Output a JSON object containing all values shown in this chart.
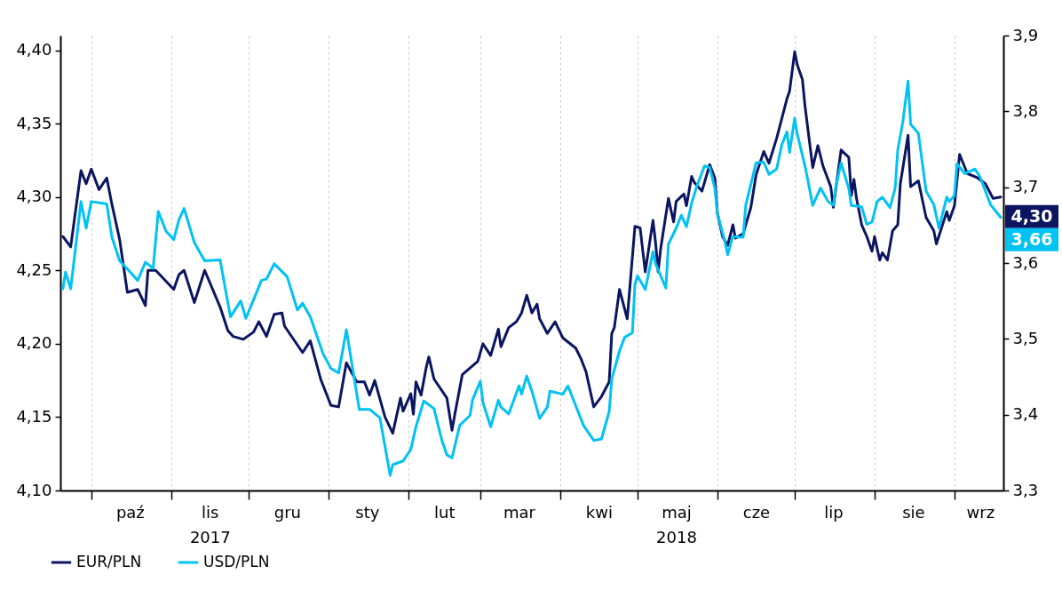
{
  "chart_data": {
    "type": "line",
    "xlim": [
      "2017-09-19",
      "2018-09-20"
    ],
    "xticks": [
      {
        "value": "2017-10-01",
        "label": null
      },
      {
        "value": "2017-11-01",
        "label": null
      },
      {
        "value": "2017-12-01",
        "label": null
      },
      {
        "value": "2018-01-01",
        "label": null
      },
      {
        "value": "2018-02-01",
        "label": null
      },
      {
        "value": "2018-03-01",
        "label": null
      },
      {
        "value": "2018-04-01",
        "label": null
      },
      {
        "value": "2018-05-01",
        "label": null
      },
      {
        "value": "2018-06-01",
        "label": null
      },
      {
        "value": "2018-07-01",
        "label": null
      },
      {
        "value": "2018-08-01",
        "label": null
      },
      {
        "value": "2018-09-01",
        "label": null
      },
      {
        "value": "2017-10-16",
        "label": "paź"
      },
      {
        "value": "2017-11-16",
        "label": "lis\n2017"
      },
      {
        "value": "2017-12-16",
        "label": "gru"
      },
      {
        "value": "2018-01-16",
        "label": "sty"
      },
      {
        "value": "2018-02-15",
        "label": "lut"
      },
      {
        "value": "2018-03-16",
        "label": "mar"
      },
      {
        "value": "2018-04-16",
        "label": "kwi"
      },
      {
        "value": "2018-05-16",
        "label": "maj\n2018"
      },
      {
        "value": "2018-06-16",
        "label": "cze"
      },
      {
        "value": "2018-07-16",
        "label": "lip"
      },
      {
        "value": "2018-08-16",
        "label": "sie"
      },
      {
        "value": "2018-09-11",
        "label": "wrz"
      }
    ],
    "ylim": [
      4.1,
      4.41
    ],
    "yticks": [
      {
        "value": 4.1,
        "label": "4,10"
      },
      {
        "value": 4.15,
        "label": "4,15"
      },
      {
        "value": 4.2,
        "label": "4,20"
      },
      {
        "value": 4.25,
        "label": "4,25"
      },
      {
        "value": 4.3,
        "label": "4,30"
      },
      {
        "value": 4.35,
        "label": "4,35"
      },
      {
        "value": 4.4,
        "label": "4,40"
      }
    ],
    "y2lim": [
      3.3,
      3.9
    ],
    "y2ticks": [
      {
        "value": 3.3,
        "label": "3,3"
      },
      {
        "value": 3.4,
        "label": "3,4"
      },
      {
        "value": 3.5,
        "label": "3,5"
      },
      {
        "value": 3.6,
        "label": "3,6"
      },
      {
        "value": 3.7,
        "label": "3,7"
      },
      {
        "value": 3.8,
        "label": "3,8"
      },
      {
        "value": 3.9,
        "label": "3,9"
      }
    ],
    "grid": "x",
    "legend": "bottom left",
    "series": [
      {
        "name": "EUR/PLN",
        "color": "#0b1560",
        "x": [
          "2017-09-20",
          "2017-09-23",
          "2017-09-27",
          "2017-09-29",
          "2017-10-01",
          "2017-10-04",
          "2017-10-07",
          "2017-10-09",
          "2017-10-12",
          "2017-10-15",
          "2017-10-19",
          "2017-10-22",
          "2017-10-23",
          "2017-10-26",
          "2017-11-02",
          "2017-11-04",
          "2017-11-06",
          "2017-11-10",
          "2017-11-14",
          "2017-11-20",
          "2017-11-23",
          "2017-11-25",
          "2017-11-29",
          "2017-12-03",
          "2017-12-05",
          "2017-12-08",
          "2017-12-11",
          "2017-12-14",
          "2017-12-15",
          "2017-12-22",
          "2017-12-25",
          "2017-12-29",
          "2018-01-02",
          "2018-01-05",
          "2018-01-08",
          "2018-01-12",
          "2018-01-15",
          "2018-01-17",
          "2018-01-19",
          "2018-01-23",
          "2018-01-26",
          "2018-01-29",
          "2018-01-30",
          "2018-02-02",
          "2018-02-03",
          "2018-02-04",
          "2018-02-06",
          "2018-02-08",
          "2018-02-09",
          "2018-02-11",
          "2018-02-16",
          "2018-02-18",
          "2018-02-19",
          "2018-02-22",
          "2018-02-28",
          "2018-03-02",
          "2018-03-05",
          "2018-03-08",
          "2018-03-09",
          "2018-03-12",
          "2018-03-15",
          "2018-03-17",
          "2018-03-19",
          "2018-03-21",
          "2018-03-23",
          "2018-03-24",
          "2018-03-27",
          "2018-03-30",
          "2018-04-02",
          "2018-04-07",
          "2018-04-09",
          "2018-04-11",
          "2018-04-14",
          "2018-04-17",
          "2018-04-20",
          "2018-04-21",
          "2018-04-22",
          "2018-04-24",
          "2018-04-27",
          "2018-04-30",
          "2018-05-02",
          "2018-05-04",
          "2018-05-07",
          "2018-05-08",
          "2018-05-09",
          "2018-05-10",
          "2018-05-13",
          "2018-05-15",
          "2018-05-16",
          "2018-05-19",
          "2018-05-20",
          "2018-05-22",
          "2018-05-23",
          "2018-05-26",
          "2018-05-29",
          "2018-05-31",
          "2018-06-01",
          "2018-06-03",
          "2018-06-05",
          "2018-06-07",
          "2018-06-08",
          "2018-06-11",
          "2018-06-14",
          "2018-06-16",
          "2018-06-19",
          "2018-06-21",
          "2018-06-24",
          "2018-06-28",
          "2018-06-29",
          "2018-07-01",
          "2018-07-02",
          "2018-07-04",
          "2018-07-05",
          "2018-07-08",
          "2018-07-10",
          "2018-07-12",
          "2018-07-15",
          "2018-07-16",
          "2018-07-19",
          "2018-07-22",
          "2018-07-23",
          "2018-07-24",
          "2018-07-25",
          "2018-07-27",
          "2018-07-29",
          "2018-07-31",
          "2018-08-01",
          "2018-08-03",
          "2018-08-04",
          "2018-08-06",
          "2018-08-08",
          "2018-08-10",
          "2018-08-11",
          "2018-08-14",
          "2018-08-15",
          "2018-08-18",
          "2018-08-21",
          "2018-08-24",
          "2018-08-25",
          "2018-08-29",
          "2018-08-30",
          "2018-09-01",
          "2018-09-03",
          "2018-09-06",
          "2018-09-10",
          "2018-09-13",
          "2018-09-16",
          "2018-09-19"
        ],
        "values": [
          4.273,
          4.266,
          4.318,
          4.309,
          4.319,
          4.305,
          4.313,
          4.295,
          4.271,
          4.235,
          4.237,
          4.226,
          4.25,
          4.25,
          4.237,
          4.247,
          4.25,
          4.228,
          4.25,
          4.225,
          4.209,
          4.205,
          4.203,
          4.208,
          4.215,
          4.205,
          4.22,
          4.221,
          4.212,
          4.194,
          4.202,
          4.176,
          4.158,
          4.157,
          4.187,
          4.174,
          4.174,
          4.165,
          4.175,
          4.15,
          4.139,
          4.163,
          4.154,
          4.166,
          4.152,
          4.174,
          4.165,
          4.184,
          4.191,
          4.176,
          4.163,
          4.141,
          4.151,
          4.179,
          4.188,
          4.2,
          4.192,
          4.21,
          4.198,
          4.211,
          4.215,
          4.221,
          4.233,
          4.221,
          4.227,
          4.217,
          4.207,
          4.215,
          4.204,
          4.197,
          4.19,
          4.181,
          4.157,
          4.164,
          4.174,
          4.207,
          4.211,
          4.237,
          4.217,
          4.28,
          4.279,
          4.249,
          4.284,
          4.269,
          4.249,
          4.265,
          4.299,
          4.283,
          4.297,
          4.302,
          4.294,
          4.314,
          4.31,
          4.304,
          4.322,
          4.313,
          4.289,
          4.273,
          4.267,
          4.281,
          4.272,
          4.275,
          4.293,
          4.315,
          4.331,
          4.323,
          4.34,
          4.367,
          4.372,
          4.399,
          4.39,
          4.38,
          4.362,
          4.32,
          4.335,
          4.321,
          4.307,
          4.293,
          4.332,
          4.327,
          4.301,
          4.312,
          4.299,
          4.281,
          4.273,
          4.263,
          4.273,
          4.257,
          4.262,
          4.257,
          4.277,
          4.281,
          4.309,
          4.342,
          4.307,
          4.311,
          4.286,
          4.277,
          4.268,
          4.29,
          4.284,
          4.294,
          4.329,
          4.316,
          4.313,
          4.309,
          4.299,
          4.3
        ],
        "value_labels": [
          null,
          null,
          null,
          null,
          null,
          null,
          null,
          null,
          null,
          null,
          null,
          null,
          null,
          null,
          null,
          null,
          null,
          null,
          null,
          null,
          null,
          null,
          null,
          null,
          null,
          null,
          null,
          null,
          null,
          null,
          null,
          null,
          null,
          null,
          null,
          null,
          null,
          null,
          null,
          null,
          null,
          null,
          null,
          null,
          null,
          null,
          null,
          null,
          null,
          null,
          null,
          null,
          null,
          null,
          null,
          null,
          null,
          null,
          null,
          null,
          null,
          null,
          null,
          null,
          null,
          null,
          null,
          null,
          null,
          null,
          null,
          null,
          null,
          null,
          null,
          null,
          null,
          null,
          null,
          null,
          null,
          null,
          null,
          null,
          null,
          null,
          null,
          null,
          null,
          null,
          null,
          null,
          null,
          null,
          null,
          null,
          null,
          null,
          null,
          null,
          null,
          null,
          null,
          null,
          null,
          null,
          null,
          null,
          null,
          null,
          null,
          null,
          null,
          null,
          null,
          null,
          null,
          null,
          null,
          null,
          null,
          null,
          null,
          null,
          null,
          null,
          null,
          null,
          null,
          null,
          null,
          null,
          null,
          null,
          null,
          null,
          null,
          null,
          null,
          null,
          null,
          null,
          null,
          null,
          null,
          null,
          null,
          "4,30"
        ]
      },
      {
        "name": "USD/PLN",
        "color": "#00c2f3",
        "axis": "y2",
        "x": [
          "2017-09-20",
          "2017-09-21",
          "2017-09-23",
          "2017-09-27",
          "2017-09-29",
          "2017-10-01",
          "2017-10-07",
          "2017-10-09",
          "2017-10-12",
          "2017-10-15",
          "2017-10-19",
          "2017-10-22",
          "2017-10-25",
          "2017-10-27",
          "2017-10-30",
          "2017-11-02",
          "2017-11-04",
          "2017-11-06",
          "2017-11-10",
          "2017-11-14",
          "2017-11-20",
          "2017-11-24",
          "2017-11-28",
          "2017-11-30",
          "2017-12-04",
          "2017-12-06",
          "2017-12-08",
          "2017-12-11",
          "2017-12-16",
          "2017-12-20",
          "2017-12-22",
          "2017-12-25",
          "2017-12-30",
          "2018-01-02",
          "2018-01-05",
          "2018-01-08",
          "2018-01-10",
          "2018-01-13",
          "2018-01-17",
          "2018-01-21",
          "2018-01-25",
          "2018-01-26",
          "2018-01-30",
          "2018-02-02",
          "2018-02-04",
          "2018-02-07",
          "2018-02-11",
          "2018-02-14",
          "2018-02-16",
          "2018-02-18",
          "2018-02-21",
          "2018-02-25",
          "2018-02-26",
          "2018-03-01",
          "2018-03-02",
          "2018-03-05",
          "2018-03-08",
          "2018-03-09",
          "2018-03-12",
          "2018-03-16",
          "2018-03-17",
          "2018-03-19",
          "2018-03-21",
          "2018-03-24",
          "2018-03-27",
          "2018-03-28",
          "2018-04-02",
          "2018-04-04",
          "2018-04-07",
          "2018-04-10",
          "2018-04-14",
          "2018-04-17",
          "2018-04-20",
          "2018-04-21",
          "2018-04-24",
          "2018-04-26",
          "2018-04-29",
          "2018-04-30",
          "2018-05-01",
          "2018-05-04",
          "2018-05-07",
          "2018-05-08",
          "2018-05-12",
          "2018-05-13",
          "2018-05-16",
          "2018-05-18",
          "2018-05-20",
          "2018-05-22",
          "2018-05-24",
          "2018-05-27",
          "2018-05-29",
          "2018-05-31",
          "2018-06-01",
          "2018-06-04",
          "2018-06-05",
          "2018-06-07",
          "2018-06-11",
          "2018-06-12",
          "2018-06-16",
          "2018-06-19",
          "2018-06-21",
          "2018-06-24",
          "2018-06-26",
          "2018-06-28",
          "2018-06-29",
          "2018-07-01",
          "2018-07-02",
          "2018-07-05",
          "2018-07-06",
          "2018-07-08",
          "2018-07-11",
          "2018-07-14",
          "2018-07-16",
          "2018-07-17",
          "2018-07-19",
          "2018-07-22",
          "2018-07-23",
          "2018-07-27",
          "2018-07-29",
          "2018-07-31",
          "2018-08-02",
          "2018-08-04",
          "2018-08-07",
          "2018-08-09",
          "2018-08-10",
          "2018-08-12",
          "2018-08-14",
          "2018-08-15",
          "2018-08-18",
          "2018-08-21",
          "2018-08-24",
          "2018-08-26",
          "2018-08-29",
          "2018-08-30",
          "2018-09-01",
          "2018-09-02",
          "2018-09-05",
          "2018-09-09",
          "2018-09-11",
          "2018-09-13",
          "2018-09-15",
          "2018-09-19"
        ],
        "values": [
          3.566,
          3.588,
          3.566,
          3.681,
          3.646,
          3.681,
          3.678,
          3.634,
          3.603,
          3.592,
          3.577,
          3.601,
          3.593,
          3.668,
          3.642,
          3.631,
          3.657,
          3.672,
          3.627,
          3.603,
          3.604,
          3.529,
          3.55,
          3.527,
          3.56,
          3.577,
          3.579,
          3.599,
          3.582,
          3.538,
          3.547,
          3.529,
          3.48,
          3.461,
          3.455,
          3.512,
          3.47,
          3.407,
          3.407,
          3.396,
          3.32,
          3.334,
          3.339,
          3.354,
          3.384,
          3.418,
          3.408,
          3.367,
          3.347,
          3.343,
          3.386,
          3.399,
          3.42,
          3.444,
          3.416,
          3.384,
          3.419,
          3.41,
          3.401,
          3.438,
          3.427,
          3.451,
          3.431,
          3.395,
          3.41,
          3.431,
          3.427,
          3.438,
          3.412,
          3.386,
          3.366,
          3.368,
          3.404,
          3.447,
          3.484,
          3.502,
          3.508,
          3.572,
          3.583,
          3.565,
          3.615,
          3.599,
          3.567,
          3.625,
          3.646,
          3.663,
          3.648,
          3.679,
          3.701,
          3.728,
          3.726,
          3.699,
          3.665,
          3.627,
          3.611,
          3.635,
          3.634,
          3.676,
          3.732,
          3.733,
          3.717,
          3.724,
          3.756,
          3.773,
          3.746,
          3.791,
          3.77,
          3.728,
          3.711,
          3.676,
          3.699,
          3.681,
          3.676,
          3.701,
          3.732,
          3.698,
          3.676,
          3.674,
          3.651,
          3.654,
          3.681,
          3.687,
          3.673,
          3.699,
          3.749,
          3.787,
          3.84,
          3.783,
          3.771,
          3.695,
          3.677,
          3.646,
          3.687,
          3.681,
          3.689,
          3.731,
          3.718,
          3.724,
          3.713,
          3.695,
          3.677,
          3.66
        ],
        "value_labels": [
          null,
          null,
          null,
          null,
          null,
          null,
          null,
          null,
          null,
          null,
          null,
          null,
          null,
          null,
          null,
          null,
          null,
          null,
          null,
          null,
          null,
          null,
          null,
          null,
          null,
          null,
          null,
          null,
          null,
          null,
          null,
          null,
          null,
          null,
          null,
          null,
          null,
          null,
          null,
          null,
          null,
          null,
          null,
          null,
          null,
          null,
          null,
          null,
          null,
          null,
          null,
          null,
          null,
          null,
          null,
          null,
          null,
          null,
          null,
          null,
          null,
          null,
          null,
          null,
          null,
          null,
          null,
          null,
          null,
          null,
          null,
          null,
          null,
          null,
          null,
          null,
          null,
          null,
          null,
          null,
          null,
          null,
          null,
          null,
          null,
          null,
          null,
          null,
          null,
          null,
          null,
          null,
          null,
          null,
          null,
          null,
          null,
          null,
          null,
          null,
          null,
          null,
          null,
          null,
          null,
          null,
          null,
          null,
          null,
          null,
          null,
          null,
          null,
          null,
          null,
          null,
          null,
          null,
          null,
          null,
          null,
          null,
          null,
          null,
          null,
          null,
          null,
          null,
          null,
          null,
          null,
          null,
          null,
          null,
          null,
          null,
          null,
          null,
          null,
          null,
          null,
          "3,66"
        ]
      }
    ]
  }
}
